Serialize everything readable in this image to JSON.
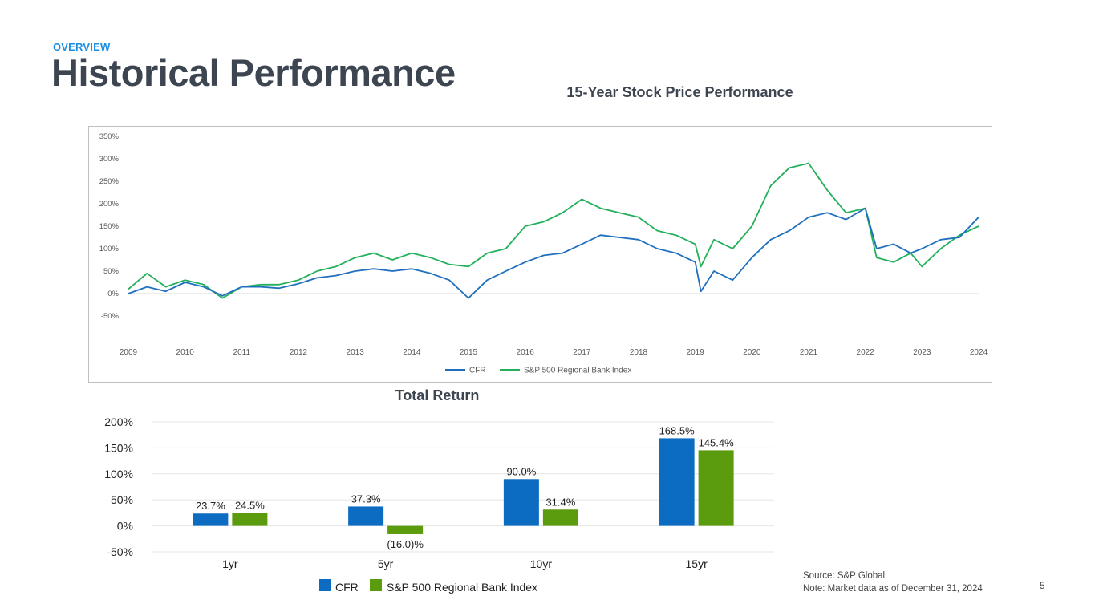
{
  "header": {
    "section_label": "OVERVIEW",
    "title": "Historical Performance"
  },
  "footer": {
    "source": "Source: S&P Global",
    "note": "Note: Market data as of December 31, 2024",
    "page_number": "5"
  },
  "colors": {
    "cfr_line": "#1f6fbf",
    "index_line": "#22b05a",
    "cfr_bar": "#0b6cc1",
    "index_bar": "#5b9c0e",
    "title_text": "#3d4551",
    "accent": "#1a8fe3"
  },
  "chart_data": [
    {
      "type": "line",
      "title": "15-Year Stock Price Performance",
      "x": [
        2009.0,
        2009.33,
        2009.66,
        2010.0,
        2010.33,
        2010.66,
        2011.0,
        2011.33,
        2011.66,
        2012.0,
        2012.33,
        2012.66,
        2013.0,
        2013.33,
        2013.66,
        2014.0,
        2014.33,
        2014.66,
        2015.0,
        2015.33,
        2015.66,
        2016.0,
        2016.33,
        2016.66,
        2017.0,
        2017.33,
        2017.66,
        2018.0,
        2018.33,
        2018.66,
        2019.0,
        2019.1,
        2019.33,
        2019.66,
        2020.0,
        2020.33,
        2020.66,
        2021.0,
        2021.33,
        2021.66,
        2022.0,
        2022.2,
        2022.5,
        2022.8,
        2023.0,
        2023.33,
        2023.66,
        2024.0
      ],
      "series": [
        {
          "name": "CFR",
          "values": [
            0,
            15,
            5,
            25,
            15,
            -5,
            15,
            15,
            12,
            22,
            35,
            40,
            50,
            55,
            50,
            55,
            45,
            30,
            -10,
            30,
            50,
            70,
            85,
            90,
            110,
            130,
            125,
            120,
            100,
            90,
            70,
            5,
            50,
            30,
            80,
            120,
            140,
            170,
            180,
            165,
            190,
            100,
            110,
            90,
            100,
            120,
            125,
            170
          ]
        },
        {
          "name": "S&P 500 Regional Bank Index",
          "values": [
            10,
            45,
            15,
            30,
            20,
            -10,
            15,
            20,
            20,
            30,
            50,
            60,
            80,
            90,
            75,
            90,
            80,
            65,
            60,
            90,
            100,
            150,
            160,
            180,
            210,
            190,
            180,
            170,
            140,
            130,
            110,
            60,
            120,
            100,
            150,
            240,
            280,
            290,
            230,
            180,
            190,
            80,
            70,
            90,
            60,
            100,
            130,
            150
          ]
        }
      ],
      "xlim": [
        2009,
        2024
      ],
      "ylim": [
        -50,
        350
      ],
      "x_ticks": [
        "2009",
        "2010",
        "2011",
        "2012",
        "2013",
        "2014",
        "2015",
        "2016",
        "2017",
        "2018",
        "2019",
        "2020",
        "2021",
        "2022",
        "2023",
        "2024"
      ],
      "y_ticks": [
        "350%",
        "300%",
        "250%",
        "200%",
        "150%",
        "100%",
        "50%",
        "0%",
        "-50%"
      ],
      "legend": [
        "CFR",
        "S&P 500 Regional Bank Index"
      ],
      "legend_position": "bottom-center"
    },
    {
      "type": "bar",
      "title": "Total Return",
      "categories": [
        "1yr",
        "5yr",
        "10yr",
        "15yr"
      ],
      "series": [
        {
          "name": "CFR",
          "values": [
            23.7,
            37.3,
            90.0,
            168.5
          ],
          "labels": [
            "23.7%",
            "37.3%",
            "90.0%",
            "168.5%"
          ]
        },
        {
          "name": "S&P 500 Regional Bank Index",
          "values": [
            24.5,
            -16.0,
            31.4,
            145.4
          ],
          "labels": [
            "24.5%",
            "(16.0)%",
            "31.4%",
            "145.4%"
          ]
        }
      ],
      "ylim": [
        -50,
        200
      ],
      "y_ticks": [
        "200%",
        "150%",
        "100%",
        "50%",
        "0%",
        "-50%"
      ],
      "legend": [
        "CFR",
        "S&P 500 Regional Bank Index"
      ],
      "legend_position": "bottom-center"
    }
  ]
}
